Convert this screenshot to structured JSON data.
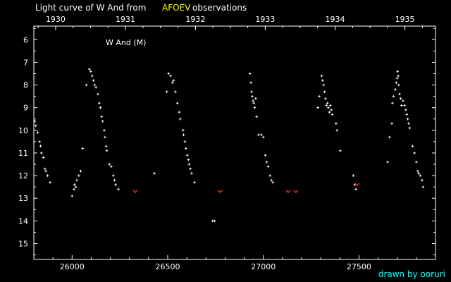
{
  "header": {
    "title_part1": "Light curve of W And from",
    "title_source": "AFOEV",
    "title_part3": "observations",
    "source_color": "#ffff00"
  },
  "credit": {
    "text": "drawn by ooruri",
    "color": "#00ffff"
  },
  "chart_data": {
    "type": "scatter",
    "title": "Light curve of W And from AFOEV observations",
    "annotation": "W And (M)",
    "xlabel": "",
    "ylabel": "",
    "xlim": [
      25800,
      27900
    ],
    "ylim": [
      15.7,
      5.4
    ],
    "y_inverted": true,
    "x_ticks": [
      26000,
      26500,
      27000,
      27500
    ],
    "x_ticklabels": [
      "26000",
      "26500",
      "27000",
      "27500"
    ],
    "y_ticks": [
      6,
      7,
      8,
      9,
      10,
      11,
      12,
      13,
      14,
      15
    ],
    "y_ticklabels": [
      "6",
      "7",
      "8",
      "9",
      "10",
      "11",
      "12",
      "13",
      "14",
      "15"
    ],
    "top_axis": {
      "ticks": [
        25914,
        26279,
        26645,
        27010,
        27375,
        27740
      ],
      "labels": [
        "1930",
        "1931",
        "1932",
        "1933",
        "1934",
        "1935"
      ]
    },
    "grid": false,
    "series": [
      {
        "marker": "plus",
        "color": "#ffffff",
        "points": [
          [
            25805,
            9.6
          ],
          [
            25810,
            9.8
          ],
          [
            25820,
            10.1
          ],
          [
            25830,
            10.5
          ],
          [
            25835,
            10.7
          ],
          [
            25840,
            11.0
          ],
          [
            25850,
            11.2
          ],
          [
            25858,
            11.7
          ],
          [
            25863,
            11.8
          ],
          [
            25872,
            12.0
          ],
          [
            25885,
            12.3
          ],
          [
            26000,
            12.9
          ],
          [
            26010,
            12.6
          ],
          [
            26012,
            12.4
          ],
          [
            26020,
            12.5
          ],
          [
            26025,
            12.2
          ],
          [
            26035,
            12.0
          ],
          [
            26045,
            11.8
          ],
          [
            26055,
            10.8
          ],
          [
            26075,
            8.0
          ],
          [
            26090,
            7.3
          ],
          [
            26098,
            7.4
          ],
          [
            26105,
            7.6
          ],
          [
            26112,
            7.8
          ],
          [
            26118,
            8.0
          ],
          [
            26125,
            8.1
          ],
          [
            26135,
            8.4
          ],
          [
            26142,
            8.8
          ],
          [
            26148,
            9.0
          ],
          [
            26155,
            9.4
          ],
          [
            26160,
            9.6
          ],
          [
            26168,
            10.0
          ],
          [
            26172,
            10.3
          ],
          [
            26178,
            10.7
          ],
          [
            26182,
            10.9
          ],
          [
            26195,
            11.5
          ],
          [
            26205,
            11.6
          ],
          [
            26215,
            12.0
          ],
          [
            26222,
            12.2
          ],
          [
            26228,
            12.4
          ],
          [
            26242,
            12.6
          ],
          [
            26430,
            11.9
          ],
          [
            26495,
            8.3
          ],
          [
            26505,
            7.5
          ],
          [
            26515,
            7.6
          ],
          [
            26525,
            7.9
          ],
          [
            26530,
            7.8
          ],
          [
            26540,
            8.3
          ],
          [
            26550,
            8.8
          ],
          [
            26560,
            9.2
          ],
          [
            26565,
            9.5
          ],
          [
            26580,
            10.0
          ],
          [
            26583,
            10.2
          ],
          [
            26590,
            10.5
          ],
          [
            26595,
            10.8
          ],
          [
            26602,
            11.1
          ],
          [
            26608,
            11.3
          ],
          [
            26612,
            11.5
          ],
          [
            26618,
            11.7
          ],
          [
            26625,
            11.9
          ],
          [
            26640,
            12.3
          ],
          [
            26735,
            14.0
          ],
          [
            26745,
            14.0
          ],
          [
            26930,
            7.5
          ],
          [
            26935,
            7.9
          ],
          [
            26938,
            8.3
          ],
          [
            26942,
            8.5
          ],
          [
            26946,
            8.7
          ],
          [
            26950,
            8.8
          ],
          [
            26955,
            9.0
          ],
          [
            26960,
            8.6
          ],
          [
            26965,
            9.4
          ],
          [
            26975,
            10.2
          ],
          [
            26990,
            10.2
          ],
          [
            27000,
            10.3
          ],
          [
            27010,
            11.1
          ],
          [
            27018,
            11.4
          ],
          [
            27025,
            11.6
          ],
          [
            27035,
            12.0
          ],
          [
            27042,
            12.2
          ],
          [
            27050,
            12.3
          ],
          [
            27285,
            9.0
          ],
          [
            27292,
            8.5
          ],
          [
            27305,
            7.6
          ],
          [
            27310,
            7.8
          ],
          [
            27315,
            8.0
          ],
          [
            27320,
            8.3
          ],
          [
            27325,
            8.6
          ],
          [
            27330,
            8.9
          ],
          [
            27335,
            8.8
          ],
          [
            27340,
            9.0
          ],
          [
            27345,
            9.2
          ],
          [
            27350,
            8.9
          ],
          [
            27355,
            9.1
          ],
          [
            27360,
            9.3
          ],
          [
            27380,
            9.7
          ],
          [
            27385,
            10.0
          ],
          [
            27402,
            10.9
          ],
          [
            27470,
            12.0
          ],
          [
            27478,
            12.4
          ],
          [
            27484,
            12.6
          ],
          [
            27650,
            11.4
          ],
          [
            27660,
            10.3
          ],
          [
            27672,
            9.7
          ],
          [
            27675,
            8.8
          ],
          [
            27680,
            8.5
          ],
          [
            27690,
            8.2
          ],
          [
            27695,
            7.9
          ],
          [
            27700,
            7.7
          ],
          [
            27702,
            7.4
          ],
          [
            27705,
            7.6
          ],
          [
            27708,
            8.0
          ],
          [
            27712,
            8.4
          ],
          [
            27718,
            8.6
          ],
          [
            27722,
            8.9
          ],
          [
            27730,
            8.7
          ],
          [
            27738,
            8.9
          ],
          [
            27745,
            9.1
          ],
          [
            27750,
            9.3
          ],
          [
            27755,
            9.5
          ],
          [
            27760,
            9.7
          ],
          [
            27765,
            9.9
          ],
          [
            27780,
            10.7
          ],
          [
            27790,
            11.0
          ],
          [
            27800,
            11.4
          ],
          [
            27808,
            11.8
          ],
          [
            27812,
            11.9
          ],
          [
            27820,
            12.0
          ],
          [
            27830,
            12.2
          ],
          [
            27835,
            12.5
          ]
        ]
      },
      {
        "marker": "fainter-than",
        "color": "#ff3030",
        "points": [
          [
            26330,
            12.7
          ],
          [
            26775,
            12.7
          ],
          [
            27130,
            12.7
          ],
          [
            27170,
            12.7
          ],
          [
            27490,
            12.4
          ]
        ]
      }
    ]
  }
}
